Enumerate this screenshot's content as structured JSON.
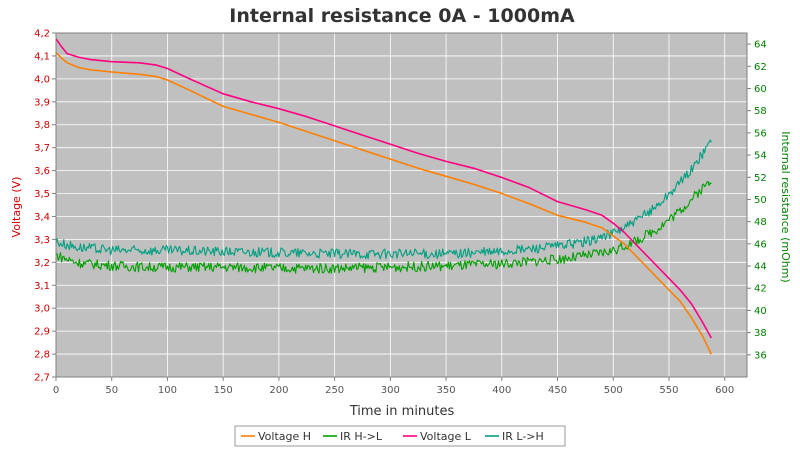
{
  "chart_data": {
    "type": "line",
    "title": "Internal resistance  0A - 1000mA",
    "xlabel": "Time in minutes",
    "ylabel_left": "Voltage (V)",
    "ylabel_right": "Internal resistance (mOhm)",
    "xlim": [
      0,
      620
    ],
    "ylim_left": [
      2.7,
      4.2
    ],
    "ylim_right": [
      34,
      65
    ],
    "x_ticks": [
      0,
      50,
      100,
      150,
      200,
      250,
      300,
      350,
      400,
      450,
      500,
      550,
      600
    ],
    "y_left_ticks": [
      "2,7",
      "2,8",
      "2,9",
      "3,0",
      "3,1",
      "3,2",
      "3,3",
      "3,4",
      "3,5",
      "3,6",
      "3,7",
      "3,8",
      "3,9",
      "4,0",
      "4,1",
      "4,2"
    ],
    "y_left_tick_values": [
      2.7,
      2.8,
      2.9,
      3.0,
      3.1,
      3.2,
      3.3,
      3.4,
      3.5,
      3.6,
      3.7,
      3.8,
      3.9,
      4.0,
      4.1,
      4.2
    ],
    "y_right_ticks": [
      36,
      38,
      40,
      42,
      44,
      46,
      48,
      50,
      52,
      54,
      56,
      58,
      60,
      62,
      64
    ],
    "grid": true,
    "legend_position": "bottom-center",
    "colors": {
      "plot_background": "#c0c0c0",
      "grid": "#ffffff",
      "left_axis": "#cc0000",
      "right_axis": "#008000"
    },
    "series": [
      {
        "name": "Voltage H",
        "axis": "left",
        "color": "#ff8000",
        "x": [
          0,
          5,
          10,
          20,
          30,
          50,
          75,
          90,
          100,
          120,
          150,
          175,
          200,
          225,
          250,
          275,
          300,
          325,
          350,
          375,
          400,
          425,
          450,
          475,
          490,
          500,
          510,
          520,
          530,
          540,
          550,
          560,
          570,
          580,
          588
        ],
        "y": [
          4.115,
          4.09,
          4.07,
          4.05,
          4.04,
          4.03,
          4.02,
          4.01,
          3.995,
          3.95,
          3.88,
          3.845,
          3.81,
          3.77,
          3.73,
          3.69,
          3.65,
          3.61,
          3.575,
          3.54,
          3.5,
          3.455,
          3.405,
          3.375,
          3.35,
          3.315,
          3.28,
          3.23,
          3.18,
          3.13,
          3.08,
          3.03,
          2.96,
          2.88,
          2.8
        ]
      },
      {
        "name": "IR H->L",
        "axis": "right",
        "color": "#00a000",
        "x": [
          0,
          10,
          20,
          40,
          60,
          80,
          100,
          150,
          200,
          250,
          300,
          350,
          400,
          450,
          480,
          500,
          520,
          540,
          560,
          575,
          588
        ],
        "y": [
          45.0,
          44.6,
          44.3,
          44.1,
          44.0,
          43.9,
          43.9,
          43.9,
          43.8,
          43.8,
          43.9,
          44.0,
          44.2,
          44.6,
          45.0,
          45.4,
          46.2,
          47.4,
          49.0,
          50.5,
          51.8
        ]
      },
      {
        "name": "Voltage L",
        "axis": "left",
        "color": "#ff0080",
        "x": [
          0,
          5,
          10,
          20,
          30,
          50,
          75,
          90,
          100,
          120,
          150,
          175,
          200,
          225,
          250,
          275,
          300,
          325,
          350,
          375,
          400,
          425,
          450,
          475,
          490,
          500,
          510,
          520,
          530,
          540,
          550,
          560,
          570,
          580,
          588
        ],
        "y": [
          4.175,
          4.14,
          4.11,
          4.095,
          4.085,
          4.075,
          4.07,
          4.06,
          4.045,
          4.0,
          3.935,
          3.9,
          3.87,
          3.835,
          3.795,
          3.755,
          3.715,
          3.675,
          3.64,
          3.61,
          3.57,
          3.525,
          3.465,
          3.43,
          3.405,
          3.37,
          3.33,
          3.28,
          3.23,
          3.18,
          3.13,
          3.08,
          3.02,
          2.94,
          2.87
        ]
      },
      {
        "name": "IR L->H",
        "axis": "right",
        "color": "#00a080",
        "x": [
          0,
          10,
          20,
          40,
          60,
          80,
          100,
          150,
          200,
          250,
          300,
          350,
          400,
          450,
          480,
          500,
          520,
          540,
          560,
          575,
          588
        ],
        "y": [
          46.2,
          45.9,
          45.7,
          45.5,
          45.4,
          45.4,
          45.4,
          45.3,
          45.2,
          45.1,
          45.1,
          45.1,
          45.3,
          45.8,
          46.3,
          47.0,
          48.0,
          49.5,
          51.5,
          53.3,
          55.4
        ]
      }
    ]
  }
}
